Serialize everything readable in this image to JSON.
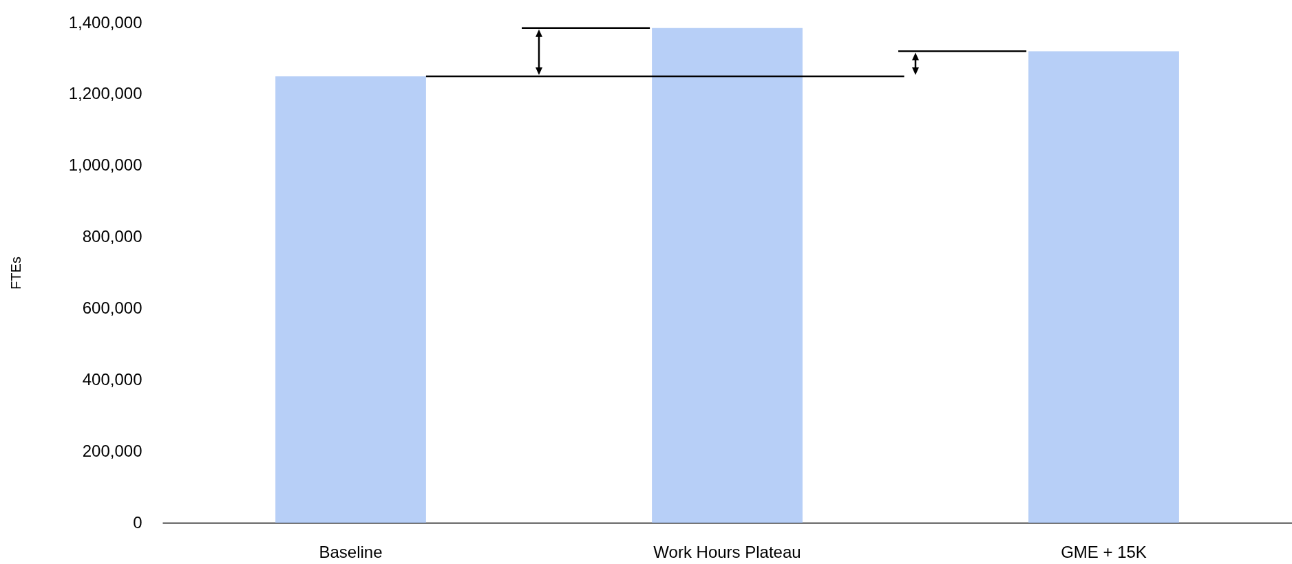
{
  "chart_data": {
    "type": "bar",
    "ylabel": "FTEs",
    "categories": [
      "Baseline",
      "Work Hours Plateau",
      "GME + 15K"
    ],
    "values": [
      1250000,
      1385000,
      1320000
    ],
    "color": "#b7cff7",
    "ylim": [
      0,
      1400000
    ],
    "yticks": [
      0,
      {
        "value": 200000,
        "label": "200,000"
      },
      {
        "value": 400000,
        "label": "400,000"
      },
      {
        "value": 600000,
        "label": "600,000"
      },
      {
        "value": 800000,
        "label": "800,000"
      },
      {
        "value": 1000000,
        "label": "1,000,000"
      },
      {
        "value": 1200000,
        "label": "1,200,000"
      },
      {
        "value": 1400000,
        "label": "1,400,000"
      }
    ],
    "ref_lines": [
      {
        "axis": "y",
        "value": 1250000,
        "color": "#000000"
      }
    ],
    "grid": false
  }
}
